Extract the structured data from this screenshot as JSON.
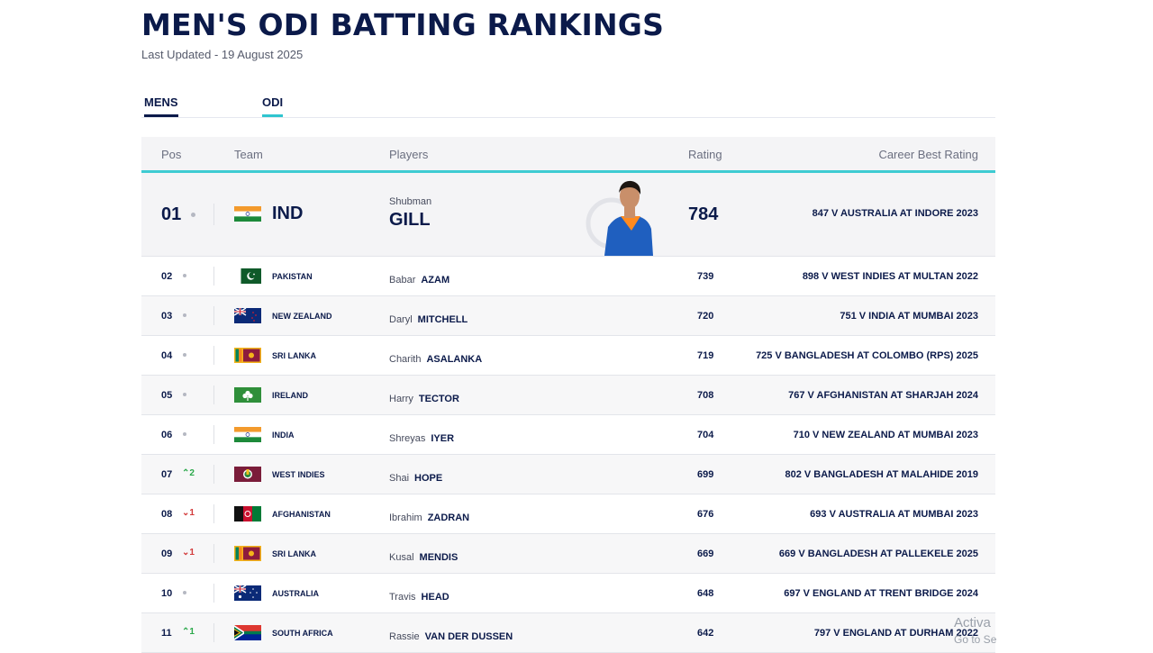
{
  "page": {
    "title": "MEN'S ODI BATTING RANKINGS",
    "last_updated": "Last Updated - 19 August 2025"
  },
  "tabs": [
    {
      "label": "MENS"
    },
    {
      "label": "ODI"
    }
  ],
  "table": {
    "headers": {
      "pos": "Pos",
      "team": "Team",
      "players": "Players",
      "rating": "Rating",
      "career_best": "Career Best Rating"
    },
    "top": {
      "pos": "01",
      "team_code": "IND",
      "first_name": "Shubman",
      "last_name": "GILL",
      "rating": "784",
      "career_best": "847 V AUSTRALIA AT INDORE 2023"
    },
    "rows": [
      {
        "pos": "02",
        "team": "PAKISTAN",
        "first_name": "Babar",
        "last_name": "AZAM",
        "rating": "739",
        "career_best": "898 V WEST INDIES AT MULTAN 2022",
        "move": ""
      },
      {
        "pos": "03",
        "team": "NEW ZEALAND",
        "first_name": "Daryl",
        "last_name": "MITCHELL",
        "rating": "720",
        "career_best": "751 V INDIA AT MUMBAI 2023",
        "move": ""
      },
      {
        "pos": "04",
        "team": "SRI LANKA",
        "first_name": "Charith",
        "last_name": "ASALANKA",
        "rating": "719",
        "career_best": "725 V BANGLADESH AT COLOMBO (RPS) 2025",
        "move": ""
      },
      {
        "pos": "05",
        "team": "IRELAND",
        "first_name": "Harry",
        "last_name": "TECTOR",
        "rating": "708",
        "career_best": "767 V AFGHANISTAN AT SHARJAH 2024",
        "move": ""
      },
      {
        "pos": "06",
        "team": "INDIA",
        "first_name": "Shreyas",
        "last_name": "IYER",
        "rating": "704",
        "career_best": "710 V NEW ZEALAND AT MUMBAI 2023",
        "move": ""
      },
      {
        "pos": "07",
        "team": "WEST INDIES",
        "first_name": "Shai",
        "last_name": "HOPE",
        "rating": "699",
        "career_best": "802 V BANGLADESH AT MALAHIDE 2019",
        "move": "^2"
      },
      {
        "pos": "08",
        "team": "AFGHANISTAN",
        "first_name": "Ibrahim",
        "last_name": "ZADRAN",
        "rating": "676",
        "career_best": "693 V AUSTRALIA AT MUMBAI 2023",
        "move": "v1"
      },
      {
        "pos": "09",
        "team": "SRI LANKA",
        "first_name": "Kusal",
        "last_name": "MENDIS",
        "rating": "669",
        "career_best": "669 V BANGLADESH AT PALLEKELE 2025",
        "move": "v1"
      },
      {
        "pos": "10",
        "team": "AUSTRALIA",
        "first_name": "Travis",
        "last_name": "HEAD",
        "rating": "648",
        "career_best": "697 V ENGLAND AT TRENT BRIDGE 2024",
        "move": ""
      },
      {
        "pos": "11",
        "team": "SOUTH AFRICA",
        "first_name": "Rassie",
        "last_name": "VAN DER DUSSEN",
        "rating": "642",
        "career_best": "797 V ENGLAND AT DURHAM 2022",
        "move": "^1"
      }
    ]
  },
  "watermark": {
    "line1": "Activa",
    "line2": "Go to Se"
  },
  "colors": {
    "navy": "#0b1a4a",
    "accent_teal": "#3ecbd2",
    "up": "#2aa84a",
    "down": "#d23a3a"
  }
}
